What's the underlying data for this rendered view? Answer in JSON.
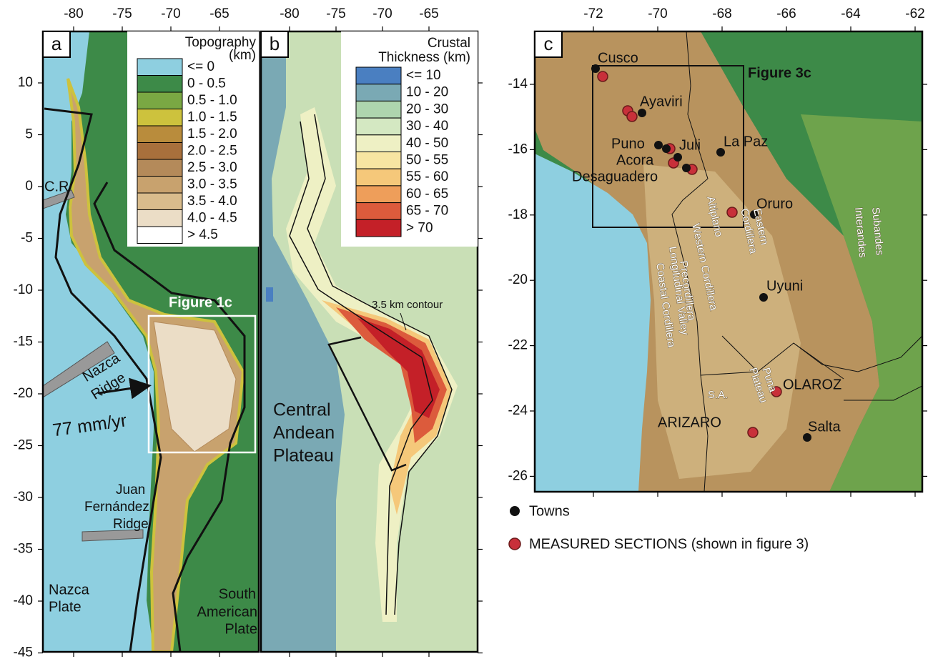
{
  "panel_a": {
    "label": "a",
    "xticks": [
      -80,
      -75,
      -70,
      -65
    ],
    "yticks": [
      10,
      5,
      0,
      -5,
      -10,
      -15,
      -20,
      -25,
      -30,
      -35,
      -40,
      -45
    ],
    "legend": {
      "title": "Topography",
      "unit": "(km)",
      "entries": [
        {
          "label": "<= 0",
          "color": "#8ecfe0"
        },
        {
          "label": "0 - 0.5",
          "color": "#3d8a48"
        },
        {
          "label": "0.5 - 1.0",
          "color": "#7aa843"
        },
        {
          "label": "1.0 - 1.5",
          "color": "#cdc23d"
        },
        {
          "label": "1.5 - 2.0",
          "color": "#b98c3c"
        },
        {
          "label": "2.0 - 2.5",
          "color": "#a8703c"
        },
        {
          "label": "2.5 - 3.0",
          "color": "#b48a5a"
        },
        {
          "label": "3.0 - 3.5",
          "color": "#c8a26e"
        },
        {
          "label": "3.5 - 4.0",
          "color": "#d9bc8c"
        },
        {
          "label": "4.0 - 4.5",
          "color": "#ebddc6"
        },
        {
          "label": "> 4.5",
          "color": "#ffffff"
        }
      ]
    },
    "annotations": [
      "C.R",
      "Nazca",
      "Ridge",
      "77 mm/yr",
      "Figure 1c",
      "Juan",
      "Fernández",
      "Ridge",
      "Nazca",
      "Plate",
      "South",
      "American",
      "Plate"
    ]
  },
  "panel_b": {
    "label": "b",
    "xticks": [
      -80,
      -75,
      -70,
      -65
    ],
    "legend": {
      "title": "Crustal",
      "unit": "Thickness (km)",
      "entries": [
        {
          "label": "<= 10",
          "color": "#4a7fc1"
        },
        {
          "label": "10 - 20",
          "color": "#7aa9b4"
        },
        {
          "label": "20 - 30",
          "color": "#aed5ae"
        },
        {
          "label": "30 - 40",
          "color": "#d4e8c2"
        },
        {
          "label": "40 - 50",
          "color": "#eef0c4"
        },
        {
          "label": "50 - 55",
          "color": "#f7e5a2"
        },
        {
          "label": "55 - 60",
          "color": "#f5c87a"
        },
        {
          "label": "60 - 65",
          "color": "#ee9e5a"
        },
        {
          "label": "65 - 70",
          "color": "#dc5b3c"
        },
        {
          "label": "> 70",
          "color": "#c42028"
        }
      ]
    },
    "annotations": [
      "3.5 km contour",
      "Central",
      "Andean",
      "Plateau"
    ]
  },
  "panel_c": {
    "label": "c",
    "xticks": [
      -72,
      -70,
      -68,
      -66,
      -64,
      -62
    ],
    "yticks": [
      -14,
      -16,
      -18,
      -20,
      -22,
      -24,
      -26
    ],
    "box_label": "Figure 3c",
    "towns": [
      "Cusco",
      "Ayaviri",
      "Puno",
      "Juli",
      "La Paz",
      "Acora",
      "Desaguadero",
      "Oruro",
      "Uyuni",
      "Salta"
    ],
    "section_labels": [
      "OLAROZ",
      "ARIZARO"
    ],
    "regions": [
      "Altiplano",
      "Western Cordillera",
      "Eastern",
      "Cordillera",
      "Interandes",
      "Subandes",
      "Precordillera",
      "Longitudinal Valley",
      "Coastal Cordillera",
      "Puna",
      "Plateau",
      "S.A."
    ],
    "legend": {
      "towns": "Towns",
      "sections": "MEASURED SECTIONS (shown in figure 3)"
    }
  }
}
